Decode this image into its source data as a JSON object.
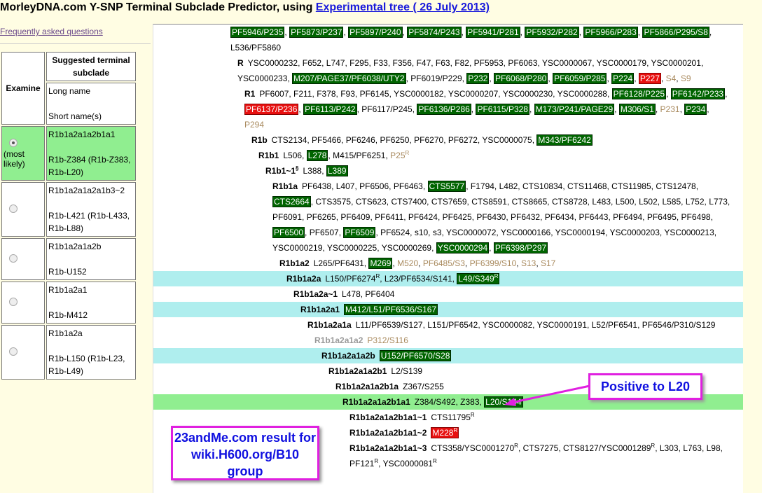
{
  "header": {
    "title": "MorleyDNA.com Y-SNP Terminal Subclade Predictor, using ",
    "tree_link": "Experimental tree ( 26 July 2013)"
  },
  "faq_link": "Frequently asked questions",
  "colors": {
    "positive": "#006400",
    "negative": "#e81010",
    "not_tested": "#a98a5e",
    "highlight_cyan": "#afeeee",
    "highlight_green": "#90ee90"
  },
  "left_table": {
    "col_examine": "Examine",
    "col_suggested": "Suggested terminal subclade",
    "long_name": "Long name",
    "short_name": "Short name(s)",
    "rows": [
      {
        "selected": true,
        "note": "(most likely)",
        "long": "R1b1a2a1a2b1a1",
        "short": "R1b-Z384 (R1b-Z383, R1b-L20)"
      },
      {
        "selected": false,
        "note": "",
        "long": "R1b1a2a1a2a1b3~2",
        "short": "R1b-L421 (R1b-L433, R1b-L88)"
      },
      {
        "selected": false,
        "note": "",
        "long": "R1b1a2a1a2b",
        "short": "R1b-U152"
      },
      {
        "selected": false,
        "note": "",
        "long": "R1b1a2a1",
        "short": "R1b-M412"
      },
      {
        "selected": false,
        "note": "",
        "long": "R1b1a2a",
        "short": "R1b-L150 (R1b-L23, R1b-L49)"
      }
    ]
  },
  "tree": [
    {
      "depth": 0,
      "name": "",
      "snps": [
        {
          "t": "PF5946/P235",
          "s": "pos"
        },
        {
          "t": "PF5873/P237",
          "s": "pos"
        },
        {
          "t": "PF5897/P240",
          "s": "pos"
        },
        {
          "t": "PF5874/P243",
          "s": "pos"
        },
        {
          "t": "PF5941/P281",
          "s": "pos"
        },
        {
          "t": "PF5932/P282",
          "s": "pos"
        },
        {
          "t": "PF5966/P283",
          "s": "pos"
        },
        {
          "t": "PF5866/P295/S8",
          "s": "pos"
        },
        {
          "t": "L536/PF5860"
        }
      ]
    },
    {
      "depth": 1,
      "name": "R",
      "snps": [
        {
          "t": "YSC0000232"
        },
        {
          "t": "F652"
        },
        {
          "t": "L747"
        },
        {
          "t": "F295"
        },
        {
          "t": "F33"
        },
        {
          "t": "F356"
        },
        {
          "t": "F47"
        },
        {
          "t": "F63"
        },
        {
          "t": "F82"
        },
        {
          "t": "PF5953"
        },
        {
          "t": "PF6063"
        },
        {
          "t": "YSC0000067"
        },
        {
          "t": "YSC0000179"
        },
        {
          "t": "YSC0000201"
        },
        {
          "t": "YSC0000233"
        },
        {
          "t": "M207/PAGE37/PF6038/UTY2",
          "s": "pos"
        },
        {
          "t": "PF6019/P229"
        },
        {
          "t": "P232",
          "s": "pos"
        },
        {
          "t": "PF6068/P280",
          "s": "pos"
        },
        {
          "t": "PF6059/P285",
          "s": "pos"
        },
        {
          "t": "P224",
          "s": "pos"
        },
        {
          "t": "P227",
          "s": "neg"
        },
        {
          "t": "S4",
          "s": "na"
        },
        {
          "t": "S9",
          "s": "na"
        }
      ]
    },
    {
      "depth": 2,
      "name": "R1",
      "snps": [
        {
          "t": "PF6007"
        },
        {
          "t": "F211"
        },
        {
          "t": "F378"
        },
        {
          "t": "F93"
        },
        {
          "t": "PF6145"
        },
        {
          "t": "YSC0000182"
        },
        {
          "t": "YSC0000207"
        },
        {
          "t": "YSC0000230"
        },
        {
          "t": "YSC0000288"
        },
        {
          "t": "PF6128/P225",
          "s": "pos"
        },
        {
          "t": "PF6142/P233",
          "s": "pos"
        },
        {
          "t": "PF6137/P236",
          "s": "neg"
        },
        {
          "t": "PF6113/P242",
          "s": "pos"
        },
        {
          "t": "PF6117/P245"
        },
        {
          "t": "PF6136/P286",
          "s": "pos"
        },
        {
          "t": "PF6115/P328",
          "s": "pos"
        },
        {
          "t": "M173/P241/PAGE29",
          "s": "pos"
        },
        {
          "t": "M306/S1",
          "s": "pos"
        },
        {
          "t": "P231",
          "s": "na"
        },
        {
          "t": "P234",
          "s": "pos"
        },
        {
          "t": "P294",
          "s": "na"
        }
      ]
    },
    {
      "depth": 3,
      "name": "R1b",
      "snps": [
        {
          "t": "CTS2134"
        },
        {
          "t": "PF5466"
        },
        {
          "t": "PF6246"
        },
        {
          "t": "PF6250"
        },
        {
          "t": "PF6270"
        },
        {
          "t": "PF6272"
        },
        {
          "t": "YSC0000075"
        },
        {
          "t": "M343/PF6242",
          "s": "pos"
        }
      ]
    },
    {
      "depth": 4,
      "name": "R1b1",
      "snps": [
        {
          "t": "L506"
        },
        {
          "t": "L278",
          "s": "pos"
        },
        {
          "t": "M415/PF6251"
        },
        {
          "t": "P25",
          "s": "na",
          "sup": "R"
        }
      ]
    },
    {
      "depth": 5,
      "name": "R1b1~1",
      "name_sup": "§",
      "snps": [
        {
          "t": "L388"
        },
        {
          "t": "L389",
          "s": "pos"
        }
      ]
    },
    {
      "depth": 6,
      "name": "R1b1a",
      "snps": [
        {
          "t": "PF6438"
        },
        {
          "t": "L407"
        },
        {
          "t": "PF6506"
        },
        {
          "t": "PF6463"
        },
        {
          "t": "CTS5577",
          "s": "pos"
        },
        {
          "t": "F1794"
        },
        {
          "t": "L482"
        },
        {
          "t": "CTS10834"
        },
        {
          "t": "CTS11468"
        },
        {
          "t": "CTS11985"
        },
        {
          "t": "CTS12478"
        },
        {
          "t": "CTS2664",
          "s": "pos"
        },
        {
          "t": "CTS3575"
        },
        {
          "t": "CTS623"
        },
        {
          "t": "CTS7400"
        },
        {
          "t": "CTS7659"
        },
        {
          "t": "CTS8591"
        },
        {
          "t": "CTS8665"
        },
        {
          "t": "CTS8728"
        },
        {
          "t": "L483"
        },
        {
          "t": "L500"
        },
        {
          "t": "L502"
        },
        {
          "t": "L585"
        },
        {
          "t": "L752"
        },
        {
          "t": "L773"
        },
        {
          "t": "PF6091"
        },
        {
          "t": "PF6265"
        },
        {
          "t": "PF6409"
        },
        {
          "t": "PF6411"
        },
        {
          "t": "PF6424"
        },
        {
          "t": "PF6425"
        },
        {
          "t": "PF6430"
        },
        {
          "t": "PF6432"
        },
        {
          "t": "PF6434"
        },
        {
          "t": "PF6443"
        },
        {
          "t": "PF6494"
        },
        {
          "t": "PF6495"
        },
        {
          "t": "PF6498"
        },
        {
          "t": "PF6500",
          "s": "pos"
        },
        {
          "t": "PF6507"
        },
        {
          "t": "PF6509",
          "s": "pos"
        },
        {
          "t": "PF6524"
        },
        {
          "t": "s10"
        },
        {
          "t": "s3"
        },
        {
          "t": "YSC0000072"
        },
        {
          "t": "YSC0000166"
        },
        {
          "t": "YSC0000194"
        },
        {
          "t": "YSC0000203"
        },
        {
          "t": "YSC0000213"
        },
        {
          "t": "YSC0000219"
        },
        {
          "t": "YSC0000225"
        },
        {
          "t": "YSC0000269"
        },
        {
          "t": "YSC0000294",
          "s": "pos"
        },
        {
          "t": "PF6398/P297",
          "s": "pos"
        }
      ]
    },
    {
      "depth": 7,
      "name": "R1b1a2",
      "snps": [
        {
          "t": "L265/PF6431"
        },
        {
          "t": "M269",
          "s": "pos"
        },
        {
          "t": "M520",
          "s": "na"
        },
        {
          "t": "PF6485/S3",
          "s": "na"
        },
        {
          "t": "PF6399/S10",
          "s": "na"
        },
        {
          "t": "S13",
          "s": "na"
        },
        {
          "t": "S17",
          "s": "na"
        }
      ]
    },
    {
      "depth": 8,
      "name": "R1b1a2a",
      "hl": "cyan",
      "snps": [
        {
          "t": "L150/PF6274",
          "sup": "R"
        },
        {
          "t": "L23/PF6534/S141"
        },
        {
          "t": "L49/S349",
          "s": "pos",
          "sup": "R"
        }
      ]
    },
    {
      "depth": 9,
      "name": "R1b1a2a~1",
      "snps": [
        {
          "t": "L478"
        },
        {
          "t": "PF6404"
        }
      ]
    },
    {
      "depth": 10,
      "name": "R1b1a2a1",
      "hl": "cyan",
      "snps": [
        {
          "t": "M412/L51/PF6536/S167",
          "s": "pos"
        }
      ]
    },
    {
      "depth": 11,
      "name": "R1b1a2a1a",
      "snps": [
        {
          "t": "L11/PF6539/S127"
        },
        {
          "t": "L151/PF6542"
        },
        {
          "t": "YSC0000082"
        },
        {
          "t": "YSC0000191"
        },
        {
          "t": "L52/PF6541"
        },
        {
          "t": "PF6546/P310/S129"
        }
      ]
    },
    {
      "depth": 12,
      "name": "R1b1a2a1a2",
      "grey": true,
      "snps": [
        {
          "t": "P312/S116",
          "s": "na"
        }
      ]
    },
    {
      "depth": 13,
      "name": "R1b1a2a1a2b",
      "hl": "cyan",
      "snps": [
        {
          "t": "U152/PF6570/S28",
          "s": "pos"
        }
      ]
    },
    {
      "depth": 14,
      "name": "R1b1a2a1a2b1",
      "snps": [
        {
          "t": "L2/S139"
        }
      ]
    },
    {
      "depth": 15,
      "name": "R1b1a2a1a2b1a",
      "snps": [
        {
          "t": "Z367/S255"
        }
      ]
    },
    {
      "depth": 16,
      "name": "R1b1a2a1a2b1a1",
      "hl": "green",
      "snps": [
        {
          "t": "Z384/S492"
        },
        {
          "t": "Z383"
        },
        {
          "t": "L20/S144",
          "s": "pos"
        }
      ]
    },
    {
      "depth": 17,
      "name": "R1b1a2a1a2b1a1~1",
      "snps": [
        {
          "t": "CTS11795",
          "sup": "R"
        }
      ]
    },
    {
      "depth": 17,
      "name": "R1b1a2a1a2b1a1~2",
      "snps": [
        {
          "t": "M228",
          "s": "neg",
          "sup": "R"
        }
      ]
    },
    {
      "depth": 17,
      "name": "R1b1a2a1a2b1a1~3",
      "snps": [
        {
          "t": "CTS358/YSC0001270",
          "sup": "R"
        },
        {
          "t": "CTS7275"
        },
        {
          "t": "CTS8127/YSC0001289",
          "sup": "R"
        },
        {
          "t": "L303"
        },
        {
          "t": "L763"
        },
        {
          "t": "L98"
        },
        {
          "t": "PF121",
          "sup": "R"
        },
        {
          "t": "YSC0000081",
          "sup": "R"
        }
      ]
    }
  ],
  "annotations": {
    "positive_callout": "Positive to L20",
    "result_callout": "23andMe.com result for wiki.H600.org/B10 group"
  }
}
